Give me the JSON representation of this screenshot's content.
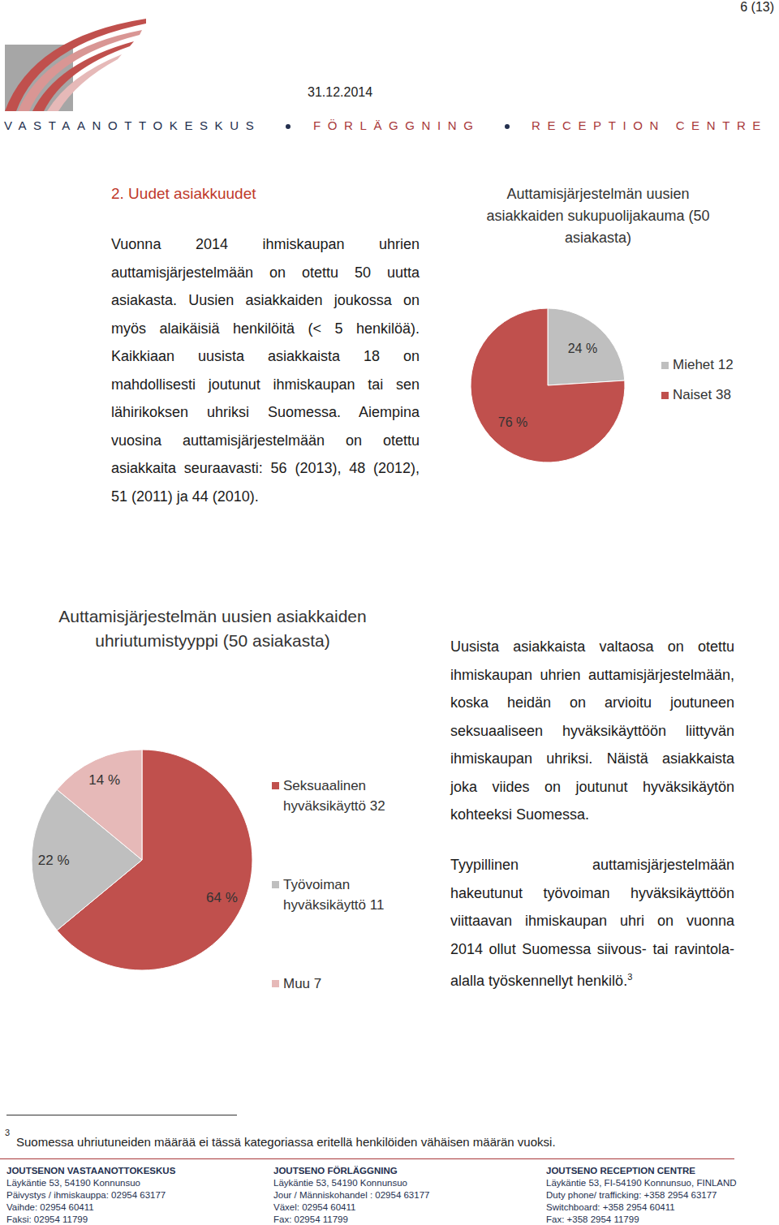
{
  "header": {
    "page": "6 (13)",
    "date": "31.12.2014",
    "banner": [
      "VASTAANOTTOKESKUS",
      "FÖRLÄGGNING",
      "RECEPTION CENTRE"
    ]
  },
  "section": {
    "heading": "2. Uudet asiakkuudet",
    "paragraphs": [
      "Vuonna 2014 ihmiskaupan uhrien auttamisjärjestelmään on otettu 50 uutta asiakasta. Uusien asiakkaiden joukossa on myös alaikäisiä henkilöitä (< 5 henkilöä). Kaikkiaan uusista asiakkaista 18 on mahdollisesti joutunut ihmiskaupan tai sen lähirikoksen uhriksi Suomessa. Aiempina vuosina auttamisjärjestelmään on otettu asiakkaita seuraavasti: 56 (2013), 48 (2012), 51 (2011) ja 44 (2010).",
      "Uusista asiakkaista valtaosa on otettu ihmiskaupan uhrien auttamisjärjestelmään, koska heidän on arvioitu joutuneen seksuaaliseen hyväksikäyttöön liittyvän ihmiskaupan uhriksi. Näistä asiakkaista joka viides on joutunut hyväksikäytön kohteeksi Suomessa.",
      "Tyypillinen auttamisjärjestelmään hakeutunut työvoiman hyväksikäyttöön viittaavan ihmiskaupan uhri on vuonna 2014 ollut Suomessa siivous- tai ravintola-alalla työskennellyt henkilö."
    ],
    "footnote_ref": "3"
  },
  "chart_data": [
    {
      "type": "pie",
      "title": "Auttamisjärjestelmän uusien asiakkaiden sukupuolijakauma (50 asiakasta)",
      "categories": [
        "Miehet",
        "Naiset"
      ],
      "values": [
        24,
        76
      ],
      "value_labels": [
        "24 %",
        "76 %"
      ],
      "counts": [
        12,
        38
      ],
      "colors": [
        "#bfbfbf",
        "#c0504d"
      ],
      "data_labels": true,
      "legend": "right"
    },
    {
      "type": "pie",
      "title": "Auttamisjärjestelmän uusien asiakkaiden uhriutumistyyppi (50 asiakasta)",
      "categories": [
        "Seksuaalinen hyväksikäyttö",
        "Työvoiman hyväksikäyttö",
        "Muu"
      ],
      "values": [
        64,
        22,
        14
      ],
      "value_labels": [
        "64 %",
        "22 %",
        "14 %"
      ],
      "counts": [
        32,
        11,
        7
      ],
      "colors": [
        "#c0504d",
        "#bfbfbf",
        "#e6b9b8"
      ],
      "data_labels": true,
      "legend": "right"
    }
  ],
  "footnote": {
    "marker": "3",
    "text": "Suomessa uhriutuneiden määrää ei tässä kategoriassa eritellä henkilöiden vähäisen määrän vuoksi."
  },
  "footer": [
    [
      "JOUTSENON VASTAANOTTOKESKUS",
      "Läykäntie 53, 54190 Konnunsuo",
      "Päivystys / ihmiskauppa: 02954 63177",
      "Vaihde: 02954 60411",
      "Faksi: 02954 11799"
    ],
    [
      "JOUTSENO FÖRLÄGGNING",
      "Läykäntie 53, 54190 Konnunsuo",
      "Jour / Människohandel : 02954 63177",
      "Växel: 02954 60411",
      "Fax: 02954 11799"
    ],
    [
      "JOUTSENO RECEPTION CENTRE",
      "Läykäntie 53, FI-54190 Konnunsuo, FINLAND",
      "Duty phone/ trafficking: +358 2954 63177",
      "Switchboard: +358 2954 60411",
      "Fax: +358 2954 11799"
    ]
  ]
}
